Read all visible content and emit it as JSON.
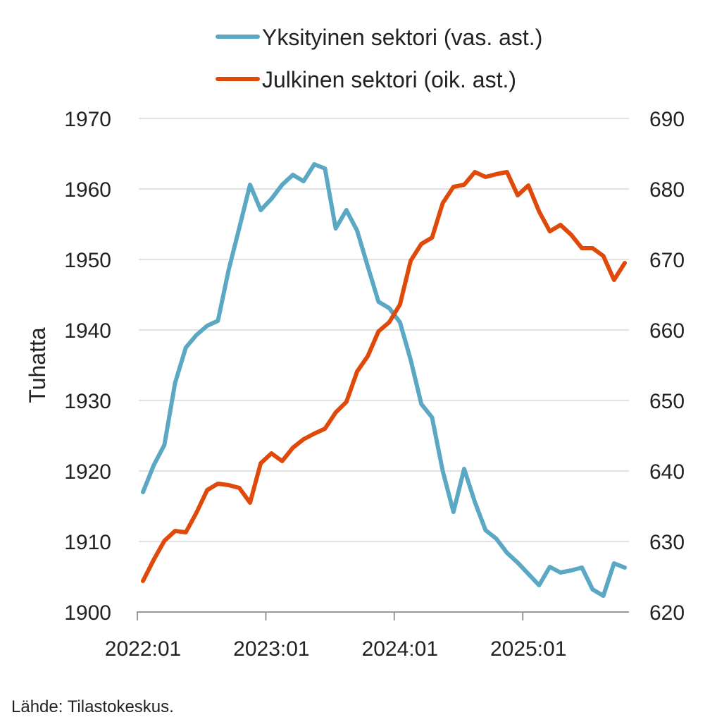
{
  "chart_data": {
    "type": "line",
    "title": "",
    "ylabel": "Tuhatta",
    "y2label": "",
    "xlabel": "",
    "source": "Lähde: Tilastokeskus.",
    "x_start": "2022:01",
    "x_end": "2025:10",
    "x_ticks": [
      "2022:01",
      "2023:01",
      "2024:01",
      "2025:01"
    ],
    "ylim": [
      1900,
      1970
    ],
    "y_ticks": [
      1900,
      1910,
      1920,
      1930,
      1940,
      1950,
      1960,
      1970
    ],
    "y2lim": [
      620,
      690
    ],
    "y2_ticks": [
      620,
      630,
      640,
      650,
      660,
      670,
      680,
      690
    ],
    "grid": "horizontal",
    "legend_position": "top",
    "series": [
      {
        "name": "Yksityinen sektori (vas. ast.)",
        "axis": "left",
        "color": "#5ba8c4",
        "values": [
          1917,
          1920.8,
          1923.7,
          1932.5,
          1937.5,
          1939.3,
          1940.6,
          1941.3,
          1948.5,
          1954.5,
          1960.6,
          1957,
          1958.6,
          1960.6,
          1962,
          1961.1,
          1963.5,
          1962.9,
          1954.4,
          1957,
          1954.1,
          1949,
          1944,
          1943.1,
          1941.1,
          1935.8,
          1929.5,
          1927.6,
          1920,
          1914.2,
          1920.3,
          1915.6,
          1911.6,
          1910.4,
          1908.4,
          1907,
          1905.4,
          1903.8,
          1906.4,
          1905.6,
          1905.9,
          1906.3,
          1903.2,
          1902.3,
          1906.9,
          1906.3
        ]
      },
      {
        "name": "Julkinen sektori (oik. ast.)",
        "axis": "right",
        "color": "#df4a0b",
        "values": [
          624.4,
          627.4,
          630.1,
          631.5,
          631.3,
          634.1,
          637.3,
          638.2,
          638,
          637.6,
          635.5,
          641.1,
          642.5,
          641.4,
          643.3,
          644.5,
          645.3,
          646,
          648.3,
          649.8,
          654.1,
          656.3,
          659.8,
          661.1,
          663.6,
          669.8,
          672.2,
          673.1,
          678,
          680.3,
          680.6,
          682.4,
          681.7,
          682.1,
          682.4,
          679.1,
          680.5,
          676.8,
          674,
          674.9,
          673.5,
          671.6,
          671.6,
          670.5,
          667.1,
          669.5
        ]
      }
    ]
  }
}
